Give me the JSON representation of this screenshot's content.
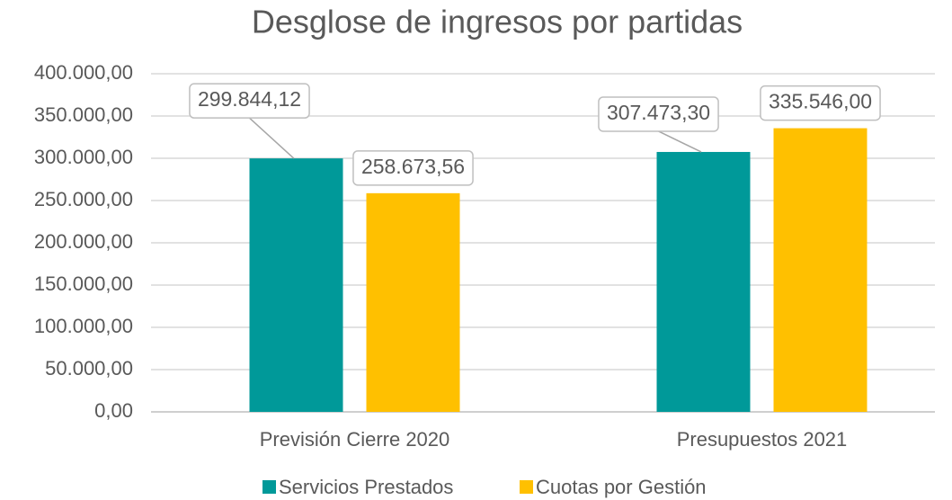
{
  "chart_data": {
    "type": "bar",
    "title": "Desglose de ingresos por partidas",
    "categories": [
      "Previsión Cierre 2020",
      "Presupuestos 2021"
    ],
    "series": [
      {
        "name": "Servicios Prestados",
        "color": "#009999",
        "values": [
          299844.12,
          307473.3
        ],
        "value_labels": [
          "299.844,12",
          "307.473,30"
        ]
      },
      {
        "name": "Cuotas por Gestión",
        "color": "#ffc000",
        "values": [
          258673.56,
          335546.0
        ],
        "value_labels": [
          "258.673,56",
          "335.546,00"
        ]
      }
    ],
    "ylim": [
      0,
      400000
    ],
    "yticks": [
      {
        "value": 0,
        "label": "0,00"
      },
      {
        "value": 50000,
        "label": "50.000,00"
      },
      {
        "value": 100000,
        "label": "100.000,00"
      },
      {
        "value": 150000,
        "label": "150.000,00"
      },
      {
        "value": 200000,
        "label": "200.000,00"
      },
      {
        "value": 250000,
        "label": "250.000,00"
      },
      {
        "value": 300000,
        "label": "300.000,00"
      },
      {
        "value": 350000,
        "label": "350.000,00"
      },
      {
        "value": 400000,
        "label": "400.000,00"
      }
    ],
    "grid": true,
    "legend": "bottom"
  }
}
